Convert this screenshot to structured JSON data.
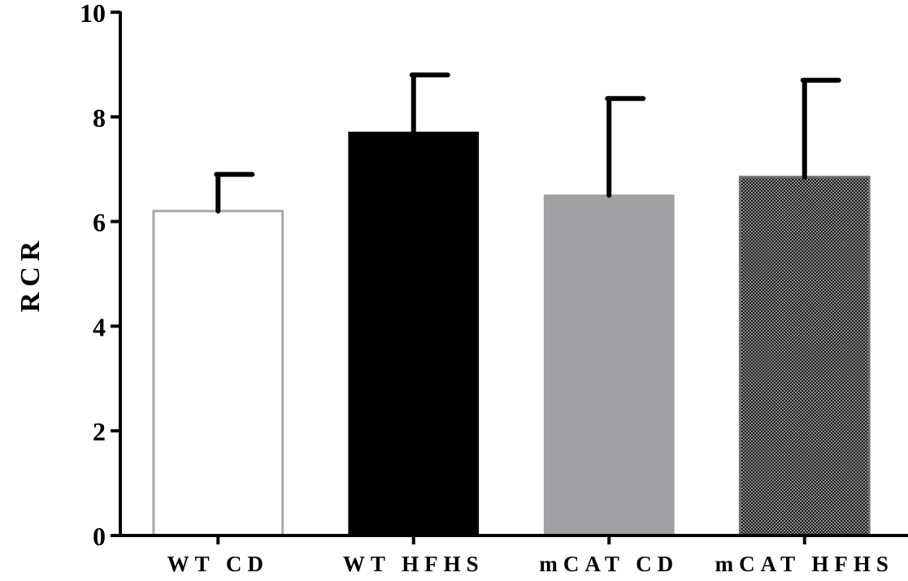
{
  "chart_data": {
    "type": "bar",
    "title": "",
    "xlabel": "",
    "ylabel": "RCR",
    "ylim": [
      0,
      10
    ],
    "yticks": [
      0,
      2,
      4,
      6,
      8,
      10
    ],
    "grid": false,
    "categories": [
      "WT CD",
      "WT HFHS",
      "mCAT CD",
      "mCAT HFHS"
    ],
    "values": [
      6.2,
      7.7,
      6.5,
      6.85
    ],
    "errors": [
      0.7,
      1.1,
      1.85,
      1.85
    ],
    "colors": [
      "#ffffff",
      "#000000",
      "#a09fa4",
      "#3a3a3a"
    ],
    "bar_fills": [
      "outline",
      "solid",
      "solid",
      "crosshatch"
    ]
  }
}
